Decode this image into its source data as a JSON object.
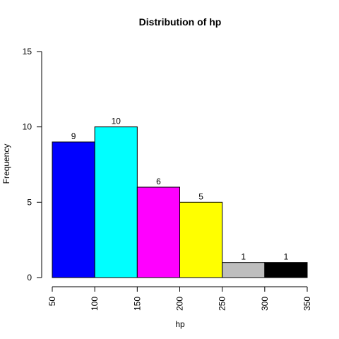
{
  "chart_data": {
    "type": "bar",
    "title": "Distribution of hp",
    "xlabel": "hp",
    "ylabel": "Frequency",
    "bins": [
      {
        "start": 50,
        "end": 100,
        "count": 9,
        "color": "#0000FF"
      },
      {
        "start": 100,
        "end": 150,
        "count": 10,
        "color": "#00FFFF"
      },
      {
        "start": 150,
        "end": 200,
        "count": 6,
        "color": "#FF00FF"
      },
      {
        "start": 200,
        "end": 250,
        "count": 5,
        "color": "#FFFF00"
      },
      {
        "start": 250,
        "end": 300,
        "count": 1,
        "color": "#BEBEBE"
      },
      {
        "start": 300,
        "end": 350,
        "count": 1,
        "color": "#000000"
      }
    ],
    "data_labels": [
      "9",
      "10",
      "6",
      "5",
      "1",
      "1"
    ],
    "xlim": [
      50,
      350
    ],
    "ylim": [
      0,
      15
    ],
    "x_ticks": [
      "50",
      "100",
      "150",
      "200",
      "250",
      "300",
      "350"
    ],
    "y_ticks": [
      "0",
      "5",
      "10",
      "15"
    ],
    "grid": false,
    "legend": "none"
  }
}
